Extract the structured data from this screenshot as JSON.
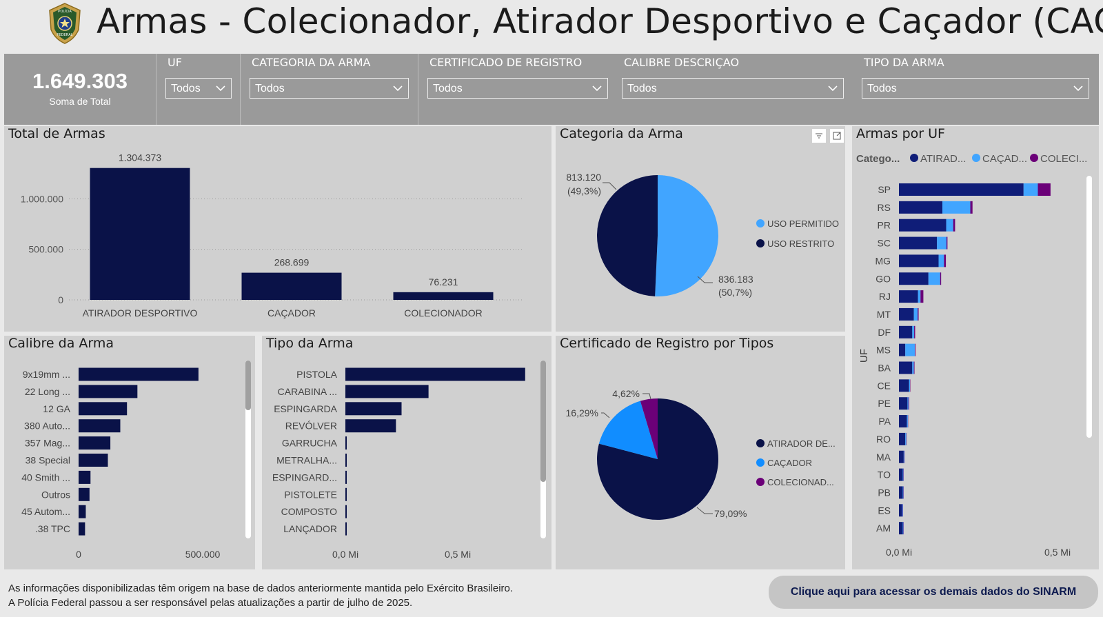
{
  "header": {
    "title": "Armas - Colecionador, Atirador Desportivo e Caçador (CAC)",
    "logo_text": [
      "POLÍCIA",
      "FEDERAL"
    ]
  },
  "kpi": {
    "value": "1.649.303",
    "label": "Soma de Total"
  },
  "filters": [
    {
      "label": "UF",
      "value": "Todos"
    },
    {
      "label": "CATEGORIA DA ARMA",
      "value": "Todos"
    },
    {
      "label": "CERTIFICADO DE REGISTRO",
      "value": "Todos"
    },
    {
      "label": "CALIBRE DESCRIÇAO",
      "value": "Todos"
    },
    {
      "label": "TIPO DA ARMA",
      "value": "Todos"
    }
  ],
  "colors": {
    "navy": "#0a1248",
    "light_blue": "#41a5ff",
    "bright_blue": "#118dff",
    "purple": "#6b0078",
    "panel": "#d0d0d0",
    "filterbar": "#9a9a9a"
  },
  "panels": {
    "total": {
      "title": "Total de Armas"
    },
    "categoria": {
      "title": "Categoria da Arma"
    },
    "uf": {
      "title": "Armas por UF"
    },
    "calibre": {
      "title": "Calibre da Arma"
    },
    "tipo": {
      "title": "Tipo da Arma"
    },
    "certificado": {
      "title": "Certificado de Registro por Tipos"
    }
  },
  "chart_data": [
    {
      "id": "total",
      "type": "bar",
      "title": "Total de Armas",
      "categories": [
        "ATIRADOR DESPORTIVO",
        "CAÇADOR",
        "COLECIONADOR"
      ],
      "values": [
        1304373,
        268699,
        76231
      ],
      "data_labels": [
        "1.304.373",
        "268.699",
        "76.231"
      ],
      "yticks": [
        "0",
        "500.000",
        "1.000.000"
      ],
      "ytick_values": [
        0,
        500000,
        1000000
      ],
      "ylim": [
        0,
        1500000
      ],
      "grid": true
    },
    {
      "id": "categoria",
      "type": "pie",
      "title": "Categoria da Arma",
      "labels": [
        "USO PERMITIDO",
        "USO RESTRITO"
      ],
      "values": [
        836183,
        813120
      ],
      "data_labels": [
        [
          "836.183",
          "(50,7%)"
        ],
        [
          "813.120",
          "(49,3%)"
        ]
      ],
      "colors": [
        "#41a5ff",
        "#0a1248"
      ],
      "legend": "right"
    },
    {
      "id": "uf",
      "type": "bar",
      "orientation": "horizontal",
      "stacked": true,
      "title": "Armas por UF",
      "ylabel": "UF",
      "legend_title": "Catego...",
      "legend": "top",
      "series_names": [
        "ATIRAD...",
        "CAÇAD...",
        "COLECI..."
      ],
      "series_colors": [
        "#0f1d78",
        "#41a5ff",
        "#6b0078"
      ],
      "categories": [
        "SP",
        "RS",
        "PR",
        "SC",
        "MG",
        "GO",
        "RJ",
        "MT",
        "DF",
        "MS",
        "BA",
        "CE",
        "PE",
        "PA",
        "RO",
        "MA",
        "TO",
        "PB",
        "ES",
        "AM"
      ],
      "series": [
        {
          "name": "ATIRAD...",
          "values": [
            0.393,
            0.137,
            0.149,
            0.12,
            0.125,
            0.093,
            0.06,
            0.047,
            0.042,
            0.02,
            0.042,
            0.032,
            0.027,
            0.025,
            0.02,
            0.015,
            0.012,
            0.012,
            0.01,
            0.012
          ]
        },
        {
          "name": "CAÇAD...",
          "values": [
            0.045,
            0.088,
            0.022,
            0.03,
            0.017,
            0.037,
            0.008,
            0.012,
            0.006,
            0.03,
            0.005,
            0.003,
            0.003,
            0.003,
            0.003,
            0.002,
            0.002,
            0.002,
            0.002,
            0.002
          ]
        },
        {
          "name": "COLECI...",
          "values": [
            0.04,
            0.007,
            0.006,
            0.003,
            0.006,
            0.003,
            0.009,
            0.003,
            0.003,
            0.002,
            0.002,
            0.001,
            0.002,
            0.001,
            0.001,
            0.001,
            0.001,
            0.001,
            0.001,
            0.001
          ]
        }
      ],
      "xticks": [
        "0,0 Mi",
        "0,5 Mi"
      ],
      "xtick_values": [
        0,
        0.5
      ],
      "unit": "Mi"
    },
    {
      "id": "calibre",
      "type": "bar",
      "orientation": "horizontal",
      "title": "Calibre da Arma",
      "categories": [
        "9x19mm ...",
        "22 Long ...",
        "12 GA",
        "380 Auto...",
        "357 Mag...",
        "38 Special",
        "40 Smith ...",
        "Outros",
        "45 Autom...",
        ".38 TPC"
      ],
      "values": [
        483000,
        237000,
        195000,
        168000,
        128000,
        118000,
        48000,
        44000,
        29000,
        26000
      ],
      "xticks": [
        "0",
        "500.000"
      ],
      "xtick_values": [
        0,
        500000
      ]
    },
    {
      "id": "tipo",
      "type": "bar",
      "orientation": "horizontal",
      "title": "Tipo da Arma",
      "categories": [
        "PISTOLA",
        "CARABINA ...",
        "ESPINGARDA",
        "REVÓLVER",
        "GARRUCHA",
        "METRALHA...",
        "ESPINGARD...",
        "PISTOLETE",
        "COMPOSTO",
        "LANÇADOR"
      ],
      "values": [
        0.8,
        0.37,
        0.25,
        0.225,
        0.005,
        0.004,
        0.004,
        0.003,
        0.003,
        0.003
      ],
      "xticks": [
        "0,0 Mi",
        "0,5 Mi"
      ],
      "xtick_values": [
        0,
        0.5
      ],
      "unit": "Mi"
    },
    {
      "id": "certificado",
      "type": "pie",
      "title": "Certificado de Registro por Tipos",
      "labels": [
        "ATIRADOR DE...",
        "CAÇADOR",
        "COLECIONAD..."
      ],
      "values": [
        79.09,
        16.29,
        4.62
      ],
      "data_labels": [
        "79,09%",
        "16,29%",
        "4,62%"
      ],
      "colors": [
        "#0a1248",
        "#118dff",
        "#6b0078"
      ],
      "legend": "right"
    }
  ],
  "footer": {
    "lines": [
      "As informações disponibilizadas têm origem na base de dados anteriormente mantida pelo Exército Brasileiro.",
      "A Polícia Federal passou a ser responsável pelas atualizações a partir de julho de 2025."
    ],
    "button": "Clique aqui para acessar os demais dados do SINARM"
  }
}
